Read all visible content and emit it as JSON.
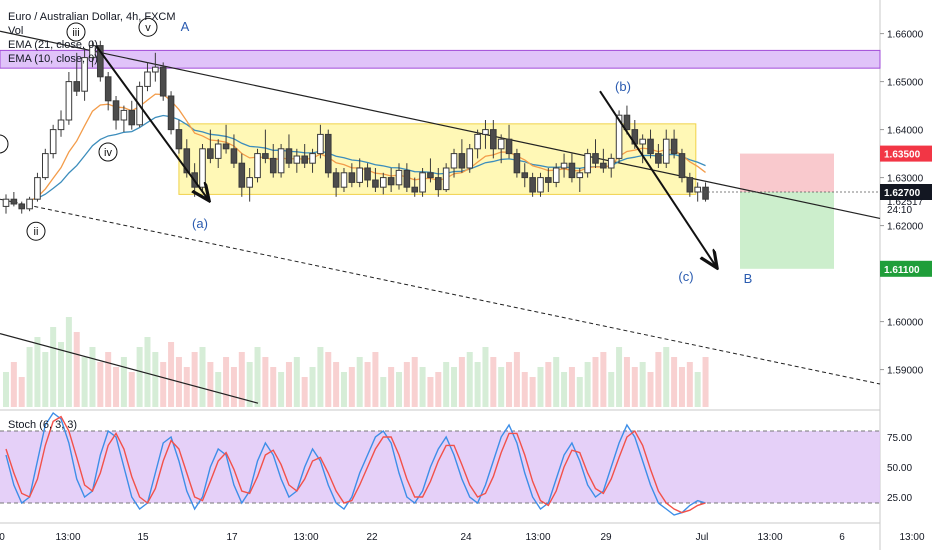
{
  "header": {
    "symbol_title": "Euro / Australian Dollar, 4h, FXCM",
    "vol_label": "Vol",
    "ema21_label": "EMA (21, close, 0)",
    "ema10_label": "EMA (10, close, 0)"
  },
  "stoch": {
    "label": "Stoch (6, 3, 3)"
  },
  "colors": {
    "up_candle": "#4c4c4c",
    "down_candle": "#4c4c4c",
    "ema21": "#3c8dbc",
    "ema10": "#f39c4a",
    "range_box": "#fff59d",
    "resistance_box": "#d8b4f8",
    "stop_zone": "#f8c3c8",
    "target_zone": "#c6ecc6",
    "stoch_k": "#3d8ee8",
    "stoch_d": "#f2514a",
    "stoch_band": "#e1c8f7"
  },
  "chart_data": {
    "type": "candlestick",
    "price_axis": {
      "ticks": [
        "1.66000",
        "1.65000",
        "1.64000",
        "1.63000",
        "1.62000",
        "1.60000",
        "1.59000"
      ],
      "range": [
        1.582,
        1.667
      ]
    },
    "price_tags": [
      {
        "label": "1.63500",
        "value": 1.635,
        "color": "#f23645"
      },
      {
        "label": "1.62700",
        "value": 1.627,
        "color": "#131722"
      },
      {
        "label": "1.62517",
        "value": 1.62517,
        "color": "none"
      },
      {
        "label": "24:10",
        "value": 1.6235,
        "color": "none"
      },
      {
        "label": "1.61100",
        "value": 1.611,
        "color": "#1f9e3a"
      }
    ],
    "time_axis": [
      "0",
      "13:00",
      "15",
      "17",
      "13:00",
      "22",
      "24",
      "13:00",
      "29",
      "Jul",
      "13:00",
      "6",
      "13:00"
    ],
    "wave_labels": [
      "A",
      "B",
      "(a)",
      "(b)",
      "(c)",
      "ii",
      "iii",
      "iv",
      "v"
    ],
    "stoch_axis": [
      "75.00",
      "50.00",
      "25.00"
    ],
    "stoch_levels": [
      80,
      20
    ],
    "ohlc": [
      [
        1.624,
        1.6265,
        1.6225,
        1.6255
      ],
      [
        1.6255,
        1.627,
        1.624,
        1.6245
      ],
      [
        1.6245,
        1.625,
        1.6225,
        1.6235
      ],
      [
        1.6235,
        1.626,
        1.623,
        1.6255
      ],
      [
        1.6255,
        1.631,
        1.625,
        1.63
      ],
      [
        1.63,
        1.636,
        1.6295,
        1.635
      ],
      [
        1.635,
        1.641,
        1.634,
        1.64
      ],
      [
        1.64,
        1.644,
        1.6385,
        1.642
      ],
      [
        1.642,
        1.652,
        1.641,
        1.65
      ],
      [
        1.65,
        1.656,
        1.647,
        1.648
      ],
      [
        1.648,
        1.657,
        1.646,
        1.655
      ],
      [
        1.655,
        1.6585,
        1.653,
        1.6575
      ],
      [
        1.6575,
        1.6585,
        1.65,
        1.651
      ],
      [
        1.651,
        1.652,
        1.644,
        1.646
      ],
      [
        1.646,
        1.647,
        1.64,
        1.642
      ],
      [
        1.642,
        1.645,
        1.6395,
        1.644
      ],
      [
        1.644,
        1.646,
        1.64,
        1.641
      ],
      [
        1.641,
        1.65,
        1.6405,
        1.649
      ],
      [
        1.649,
        1.654,
        1.648,
        1.652
      ],
      [
        1.652,
        1.656,
        1.65,
        1.653
      ],
      [
        1.653,
        1.654,
        1.646,
        1.647
      ],
      [
        1.647,
        1.648,
        1.639,
        1.64
      ],
      [
        1.64,
        1.642,
        1.635,
        1.636
      ],
      [
        1.636,
        1.638,
        1.63,
        1.631
      ],
      [
        1.631,
        1.633,
        1.626,
        1.628
      ],
      [
        1.628,
        1.637,
        1.627,
        1.636
      ],
      [
        1.636,
        1.64,
        1.633,
        1.634
      ],
      [
        1.634,
        1.638,
        1.632,
        1.637
      ],
      [
        1.637,
        1.641,
        1.635,
        1.636
      ],
      [
        1.636,
        1.639,
        1.632,
        1.633
      ],
      [
        1.633,
        1.635,
        1.626,
        1.628
      ],
      [
        1.628,
        1.632,
        1.625,
        1.63
      ],
      [
        1.63,
        1.636,
        1.629,
        1.635
      ],
      [
        1.635,
        1.64,
        1.633,
        1.634
      ],
      [
        1.634,
        1.637,
        1.63,
        1.631
      ],
      [
        1.631,
        1.637,
        1.63,
        1.636
      ],
      [
        1.636,
        1.639,
        1.632,
        1.633
      ],
      [
        1.633,
        1.636,
        1.631,
        1.6345
      ],
      [
        1.6345,
        1.637,
        1.632,
        1.633
      ],
      [
        1.633,
        1.636,
        1.631,
        1.635
      ],
      [
        1.635,
        1.641,
        1.634,
        1.639
      ],
      [
        1.639,
        1.64,
        1.63,
        1.631
      ],
      [
        1.631,
        1.632,
        1.626,
        1.628
      ],
      [
        1.628,
        1.632,
        1.627,
        1.631
      ],
      [
        1.631,
        1.633,
        1.628,
        1.629
      ],
      [
        1.629,
        1.634,
        1.628,
        1.632
      ],
      [
        1.632,
        1.633,
        1.628,
        1.6295
      ],
      [
        1.6295,
        1.632,
        1.627,
        1.628
      ],
      [
        1.628,
        1.631,
        1.6265,
        1.63
      ],
      [
        1.63,
        1.632,
        1.627,
        1.6285
      ],
      [
        1.6285,
        1.633,
        1.6275,
        1.6315
      ],
      [
        1.6315,
        1.633,
        1.627,
        1.628
      ],
      [
        1.628,
        1.63,
        1.626,
        1.627
      ],
      [
        1.627,
        1.632,
        1.626,
        1.631
      ],
      [
        1.631,
        1.634,
        1.629,
        1.63
      ],
      [
        1.63,
        1.632,
        1.626,
        1.6275
      ],
      [
        1.6275,
        1.633,
        1.627,
        1.632
      ],
      [
        1.632,
        1.636,
        1.63,
        1.635
      ],
      [
        1.635,
        1.638,
        1.631,
        1.632
      ],
      [
        1.632,
        1.637,
        1.631,
        1.636
      ],
      [
        1.636,
        1.64,
        1.634,
        1.639
      ],
      [
        1.639,
        1.642,
        1.636,
        1.64
      ],
      [
        1.64,
        1.642,
        1.634,
        1.636
      ],
      [
        1.636,
        1.639,
        1.633,
        1.638
      ],
      [
        1.638,
        1.641,
        1.634,
        1.635
      ],
      [
        1.635,
        1.636,
        1.63,
        1.631
      ],
      [
        1.631,
        1.633,
        1.628,
        1.63
      ],
      [
        1.63,
        1.631,
        1.626,
        1.627
      ],
      [
        1.627,
        1.631,
        1.626,
        1.63
      ],
      [
        1.63,
        1.632,
        1.627,
        1.629
      ],
      [
        1.629,
        1.633,
        1.628,
        1.632
      ],
      [
        1.632,
        1.635,
        1.63,
        1.633
      ],
      [
        1.633,
        1.635,
        1.629,
        1.63
      ],
      [
        1.63,
        1.632,
        1.627,
        1.631
      ],
      [
        1.631,
        1.636,
        1.63,
        1.635
      ],
      [
        1.635,
        1.638,
        1.632,
        1.633
      ],
      [
        1.633,
        1.636,
        1.631,
        1.632
      ],
      [
        1.632,
        1.635,
        1.63,
        1.634
      ],
      [
        1.634,
        1.644,
        1.633,
        1.643
      ],
      [
        1.643,
        1.645,
        1.639,
        1.64
      ],
      [
        1.64,
        1.642,
        1.636,
        1.637
      ],
      [
        1.637,
        1.639,
        1.633,
        1.638
      ],
      [
        1.638,
        1.64,
        1.634,
        1.635
      ],
      [
        1.635,
        1.637,
        1.632,
        1.633
      ],
      [
        1.633,
        1.64,
        1.632,
        1.638
      ],
      [
        1.638,
        1.64,
        1.634,
        1.635
      ],
      [
        1.635,
        1.636,
        1.629,
        1.63
      ],
      [
        1.63,
        1.631,
        1.626,
        1.627
      ],
      [
        1.627,
        1.629,
        1.625,
        1.628
      ],
      [
        1.628,
        1.629,
        1.625,
        1.6255
      ]
    ],
    "volume": [
      0.35,
      0.45,
      0.3,
      0.6,
      0.7,
      0.55,
      0.8,
      0.65,
      0.9,
      0.75,
      0.5,
      0.6,
      0.45,
      0.55,
      0.4,
      0.5,
      0.35,
      0.6,
      0.7,
      0.55,
      0.45,
      0.65,
      0.5,
      0.4,
      0.55,
      0.6,
      0.45,
      0.35,
      0.5,
      0.4,
      0.55,
      0.45,
      0.6,
      0.5,
      0.4,
      0.35,
      0.45,
      0.5,
      0.3,
      0.4,
      0.6,
      0.55,
      0.45,
      0.35,
      0.4,
      0.5,
      0.45,
      0.55,
      0.3,
      0.4,
      0.35,
      0.45,
      0.5,
      0.4,
      0.3,
      0.35,
      0.45,
      0.4,
      0.5,
      0.55,
      0.45,
      0.6,
      0.5,
      0.4,
      0.45,
      0.55,
      0.35,
      0.3,
      0.4,
      0.45,
      0.5,
      0.35,
      0.4,
      0.3,
      0.45,
      0.5,
      0.55,
      0.35,
      0.6,
      0.5,
      0.4,
      0.45,
      0.35,
      0.55,
      0.6,
      0.5,
      0.4,
      0.45,
      0.35,
      0.5
    ],
    "stoch_k": [
      60,
      35,
      20,
      25,
      55,
      85,
      95,
      90,
      70,
      40,
      25,
      30,
      60,
      80,
      75,
      50,
      25,
      15,
      20,
      45,
      70,
      75,
      55,
      30,
      15,
      25,
      50,
      65,
      60,
      35,
      20,
      30,
      55,
      70,
      60,
      40,
      25,
      30,
      50,
      65,
      55,
      35,
      20,
      15,
      25,
      45,
      60,
      75,
      80,
      70,
      45,
      25,
      20,
      30,
      50,
      65,
      75,
      60,
      40,
      25,
      20,
      35,
      55,
      75,
      85,
      70,
      45,
      25,
      15,
      20,
      40,
      60,
      70,
      55,
      35,
      25,
      30,
      50,
      70,
      85,
      75,
      55,
      35,
      20,
      15,
      10,
      12,
      18,
      22,
      20
    ],
    "stoch_d": [
      65,
      45,
      28,
      25,
      40,
      68,
      88,
      92,
      80,
      58,
      35,
      30,
      45,
      68,
      78,
      65,
      42,
      25,
      20,
      32,
      55,
      72,
      65,
      45,
      25,
      22,
      38,
      55,
      62,
      48,
      30,
      28,
      42,
      60,
      64,
      52,
      35,
      30,
      40,
      55,
      58,
      45,
      30,
      20,
      22,
      35,
      50,
      65,
      75,
      75,
      60,
      40,
      25,
      25,
      38,
      55,
      68,
      68,
      52,
      35,
      25,
      28,
      42,
      62,
      78,
      78,
      60,
      38,
      22,
      18,
      30,
      50,
      64,
      62,
      45,
      32,
      28,
      40,
      58,
      75,
      80,
      68,
      48,
      30,
      20,
      15,
      12,
      14,
      18,
      20
    ]
  }
}
